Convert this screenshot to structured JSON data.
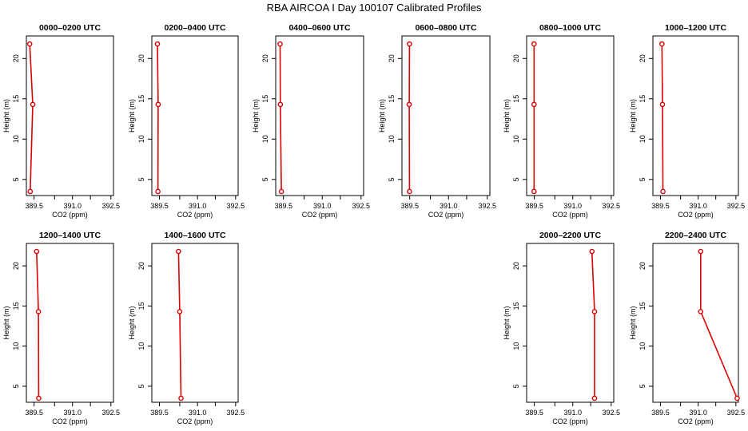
{
  "page_title": "RBA AIRCOA I  Day 100107  Calibrated Profiles",
  "chart_data": [
    {
      "type": "line",
      "title": "0000–0200 UTC",
      "xlabel": "CO2 (ppm)",
      "ylabel": "Height (m)",
      "xlim": [
        389.2,
        392.6
      ],
      "ylim": [
        3,
        22.8
      ],
      "x_ticks": [
        389.5,
        391.0,
        392.5
      ],
      "x_ticks_minor": [
        390.3,
        391.7
      ],
      "y_ticks": [
        5,
        10,
        15,
        20
      ],
      "points": [
        {
          "x": 389.35,
          "y": 3.5
        },
        {
          "x": 389.45,
          "y": 14.3
        },
        {
          "x": 389.33,
          "y": 21.8
        }
      ]
    },
    {
      "type": "line",
      "title": "0200–0400 UTC",
      "xlabel": "CO2 (ppm)",
      "ylabel": "Height (m)",
      "xlim": [
        389.2,
        392.6
      ],
      "ylim": [
        3,
        22.8
      ],
      "x_ticks": [
        389.5,
        391.0,
        392.5
      ],
      "x_ticks_minor": [
        390.3,
        391.7
      ],
      "y_ticks": [
        5,
        10,
        15,
        20
      ],
      "points": [
        {
          "x": 389.44,
          "y": 3.5
        },
        {
          "x": 389.45,
          "y": 14.3
        },
        {
          "x": 389.42,
          "y": 21.8
        }
      ]
    },
    {
      "type": "line",
      "title": "0400–0600 UTC",
      "xlabel": "CO2 (ppm)",
      "ylabel": "Height (m)",
      "xlim": [
        389.2,
        392.6
      ],
      "ylim": [
        3,
        22.8
      ],
      "x_ticks": [
        389.5,
        391.0,
        392.5
      ],
      "x_ticks_minor": [
        390.3,
        391.7
      ],
      "y_ticks": [
        5,
        10,
        15,
        20
      ],
      "points": [
        {
          "x": 389.42,
          "y": 3.5
        },
        {
          "x": 389.38,
          "y": 14.3
        },
        {
          "x": 389.37,
          "y": 21.8
        }
      ]
    },
    {
      "type": "line",
      "title": "0600–0800 UTC",
      "xlabel": "CO2 (ppm)",
      "ylabel": "Height (m)",
      "xlim": [
        389.2,
        392.6
      ],
      "ylim": [
        3,
        22.8
      ],
      "x_ticks": [
        389.5,
        391.0,
        392.5
      ],
      "x_ticks_minor": [
        390.3,
        391.7
      ],
      "y_ticks": [
        5,
        10,
        15,
        20
      ],
      "points": [
        {
          "x": 389.49,
          "y": 3.5
        },
        {
          "x": 389.48,
          "y": 14.3
        },
        {
          "x": 389.49,
          "y": 21.8
        }
      ]
    },
    {
      "type": "line",
      "title": "0800–1000 UTC",
      "xlabel": "CO2 (ppm)",
      "ylabel": "Height (m)",
      "xlim": [
        389.2,
        392.6
      ],
      "ylim": [
        3,
        22.8
      ],
      "x_ticks": [
        389.5,
        391.0,
        392.5
      ],
      "x_ticks_minor": [
        390.3,
        391.7
      ],
      "y_ticks": [
        5,
        10,
        15,
        20
      ],
      "points": [
        {
          "x": 389.49,
          "y": 3.5
        },
        {
          "x": 389.49,
          "y": 14.3
        },
        {
          "x": 389.49,
          "y": 21.8
        }
      ]
    },
    {
      "type": "line",
      "title": "1000–1200 UTC",
      "xlabel": "CO2 (ppm)",
      "ylabel": "Height (m)",
      "xlim": [
        389.2,
        392.6
      ],
      "ylim": [
        3,
        22.8
      ],
      "x_ticks": [
        389.5,
        391.0,
        392.5
      ],
      "x_ticks_minor": [
        390.3,
        391.7
      ],
      "y_ticks": [
        5,
        10,
        15,
        20
      ],
      "points": [
        {
          "x": 389.6,
          "y": 3.5
        },
        {
          "x": 389.58,
          "y": 14.3
        },
        {
          "x": 389.56,
          "y": 21.8
        }
      ]
    },
    {
      "type": "line",
      "title": "1200–1400 UTC",
      "xlabel": "CO2 (ppm)",
      "ylabel": "Height (m)",
      "xlim": [
        389.2,
        392.6
      ],
      "ylim": [
        3,
        22.8
      ],
      "x_ticks": [
        389.5,
        391.0,
        392.5
      ],
      "x_ticks_minor": [
        390.3,
        391.7
      ],
      "y_ticks": [
        5,
        10,
        15,
        20
      ],
      "points": [
        {
          "x": 389.68,
          "y": 3.5
        },
        {
          "x": 389.67,
          "y": 14.3
        },
        {
          "x": 389.6,
          "y": 21.8
        }
      ]
    },
    {
      "type": "line",
      "title": "1400–1600 UTC",
      "xlabel": "CO2 (ppm)",
      "ylabel": "Height (m)",
      "xlim": [
        389.2,
        392.6
      ],
      "ylim": [
        3,
        22.8
      ],
      "x_ticks": [
        389.5,
        391.0,
        392.5
      ],
      "x_ticks_minor": [
        390.3,
        391.7
      ],
      "y_ticks": [
        5,
        10,
        15,
        20
      ],
      "points": [
        {
          "x": 390.35,
          "y": 3.5
        },
        {
          "x": 390.3,
          "y": 14.3
        },
        {
          "x": 390.25,
          "y": 21.8
        }
      ]
    },
    {
      "type": "line",
      "title": "2000–2200 UTC",
      "xlabel": "CO2 (ppm)",
      "ylabel": "Height (m)",
      "xlim": [
        389.2,
        392.6
      ],
      "ylim": [
        3,
        22.8
      ],
      "x_ticks": [
        389.5,
        391.0,
        392.5
      ],
      "x_ticks_minor": [
        390.3,
        391.7
      ],
      "y_ticks": [
        5,
        10,
        15,
        20
      ],
      "points": [
        {
          "x": 391.85,
          "y": 3.5
        },
        {
          "x": 391.85,
          "y": 14.3
        },
        {
          "x": 391.75,
          "y": 21.8
        }
      ]
    },
    {
      "type": "line",
      "title": "2200–2400 UTC",
      "xlabel": "CO2 (ppm)",
      "ylabel": "Height (m)",
      "xlim": [
        389.2,
        392.6
      ],
      "ylim": [
        3,
        22.8
      ],
      "x_ticks": [
        389.5,
        391.0,
        392.5
      ],
      "x_ticks_minor": [
        390.3,
        391.7
      ],
      "y_ticks": [
        5,
        10,
        15,
        20
      ],
      "points": [
        {
          "x": 392.55,
          "y": 3.5
        },
        {
          "x": 391.1,
          "y": 14.3
        },
        {
          "x": 391.1,
          "y": 21.8
        }
      ]
    }
  ],
  "colors": {
    "series": "#dd0000",
    "axis": "#000000"
  }
}
